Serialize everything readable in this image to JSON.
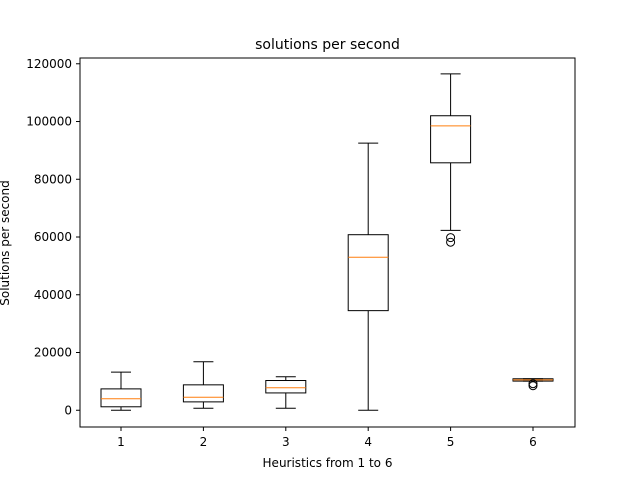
{
  "chart_data": {
    "type": "box",
    "title": "solutions per second",
    "xlabel": "Heuristics from 1 to 6",
    "ylabel": "Solutions per second",
    "categories": [
      "1",
      "2",
      "3",
      "4",
      "5",
      "6"
    ],
    "yticks": [
      0,
      20000,
      40000,
      60000,
      80000,
      100000,
      120000
    ],
    "ylim": [
      -5800,
      122000
    ],
    "grid": false,
    "legend": "none",
    "boxes": [
      {
        "category": "1",
        "whisker_low": 0,
        "q1": 1200,
        "median": 4000,
        "q3": 7400,
        "whisker_high": 13200,
        "outliers": []
      },
      {
        "category": "2",
        "whisker_low": 700,
        "q1": 2900,
        "median": 4500,
        "q3": 8800,
        "whisker_high": 16800,
        "outliers": []
      },
      {
        "category": "3",
        "whisker_low": 700,
        "q1": 6000,
        "median": 7800,
        "q3": 10300,
        "whisker_high": 11600,
        "outliers": []
      },
      {
        "category": "4",
        "whisker_low": 0,
        "q1": 34500,
        "median": 53000,
        "q3": 60800,
        "whisker_high": 92500,
        "outliers": []
      },
      {
        "category": "5",
        "whisker_low": 62300,
        "q1": 85700,
        "median": 98500,
        "q3": 102000,
        "whisker_high": 116500,
        "outliers": [
          58200,
          59800
        ]
      },
      {
        "category": "6",
        "whisker_low": 10100,
        "q1": 10100,
        "median": 10500,
        "q3": 10900,
        "whisker_high": 10900,
        "outliers": [
          8500,
          9200
        ]
      }
    ],
    "colors": {
      "box": "#000000",
      "median": "#ff7f0e",
      "axes": "#000000",
      "background": "#ffffff"
    }
  }
}
